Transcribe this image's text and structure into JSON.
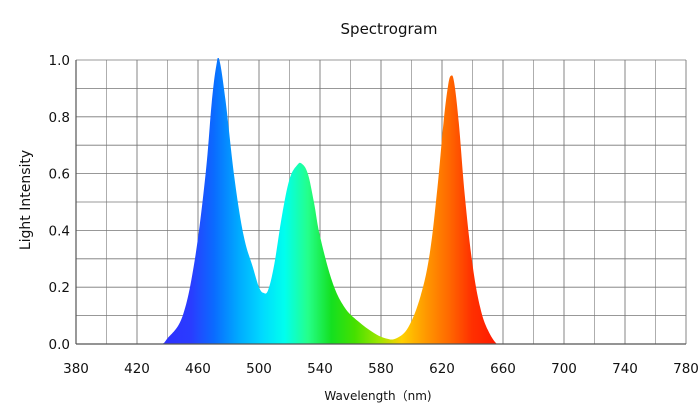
{
  "chart_data": {
    "type": "area",
    "title": "Spectrogram",
    "xlabel": "Wavelength（nm)",
    "ylabel": "Light Intensity",
    "xlim": [
      380,
      780
    ],
    "ylim": [
      0,
      1.0
    ],
    "x_ticks": [
      "380",
      "420",
      "460",
      "500",
      "540",
      "580",
      "620",
      "660",
      "700",
      "740",
      "780"
    ],
    "y_ticks": [
      "0.0",
      "0.2",
      "0.4",
      "0.6",
      "0.8",
      "1.0"
    ],
    "grid": true,
    "series": [
      {
        "name": "Light Intensity",
        "fill": "spectral-gradient",
        "x": [
          380,
          420,
          435,
          440,
          450,
          458,
          465,
          469,
          472,
          474,
          478,
          484,
          490,
          496,
          500,
          503,
          506,
          510,
          515,
          520,
          525,
          528,
          532,
          536,
          540,
          548,
          556,
          565,
          575,
          583,
          590,
          598,
          606,
          612,
          617,
          621,
          624,
          626,
          628,
          631,
          635,
          640,
          645,
          650,
          656,
          660,
          780
        ],
        "values": [
          0,
          0,
          0,
          0.02,
          0.1,
          0.3,
          0.6,
          0.85,
          0.98,
          1.0,
          0.86,
          0.58,
          0.38,
          0.27,
          0.2,
          0.18,
          0.19,
          0.28,
          0.45,
          0.58,
          0.63,
          0.635,
          0.6,
          0.5,
          0.38,
          0.22,
          0.13,
          0.08,
          0.04,
          0.02,
          0.02,
          0.06,
          0.17,
          0.32,
          0.55,
          0.78,
          0.91,
          0.945,
          0.92,
          0.78,
          0.52,
          0.28,
          0.13,
          0.05,
          0.0,
          0,
          0
        ]
      }
    ]
  },
  "colors": {
    "grid": "#777777",
    "axis": "#555555",
    "spectrum": [
      "#2d32ff",
      "#2a3cff",
      "#0a6cff",
      "#00a8ff",
      "#00d8ff",
      "#00ffee",
      "#25ff8a",
      "#14e020",
      "#45e000",
      "#9ae600",
      "#ffd000",
      "#ff9a00",
      "#ff6a00",
      "#ff3000",
      "#ff1a00"
    ]
  }
}
